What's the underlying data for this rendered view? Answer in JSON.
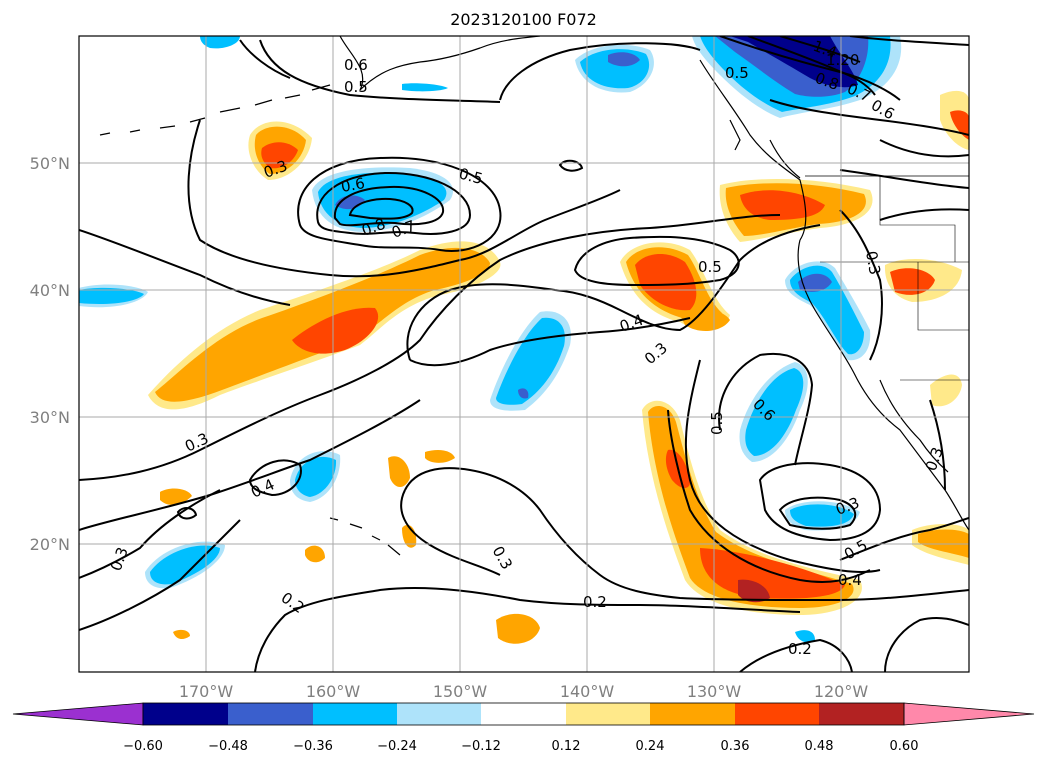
{
  "title": "2023120100 F072",
  "lat_labels": [
    "50°N",
    "40°N",
    "30°N",
    "20°N"
  ],
  "lon_labels": [
    "170°W",
    "160°W",
    "150°W",
    "140°W",
    "130°W",
    "120°W"
  ],
  "colorbar": {
    "ticks": [
      "−0.60",
      "−0.48",
      "−0.36",
      "−0.24",
      "−0.12",
      "0.12",
      "0.24",
      "0.36",
      "0.48",
      "0.60"
    ],
    "colors": [
      "#9b30d0",
      "#00008b",
      "#3a5fcd",
      "#00bfff",
      "#aee3fa",
      "#ffffff",
      "#ffe98a",
      "#ffa500",
      "#ff4500",
      "#b22222",
      "#ff88aa"
    ]
  },
  "contour_labels": [
    "0.6",
    "0.5",
    "1.4",
    "1.20",
    "0.5",
    "0.8",
    "0.7",
    "0.6",
    "0.3",
    "0.5",
    "0.6",
    "0.8",
    "0.7",
    "0.5",
    "0.3",
    "0.4",
    "0.3",
    "0.5",
    "0.6",
    "0.3",
    "0.3",
    "0.4",
    "0.3",
    "0.3",
    "0.2",
    "0.2",
    "0.3",
    "0.5",
    "0.4",
    "0.2"
  ],
  "colors": {
    "land": "#000000",
    "grid": "#aaaaaa",
    "contour": "#000000"
  }
}
